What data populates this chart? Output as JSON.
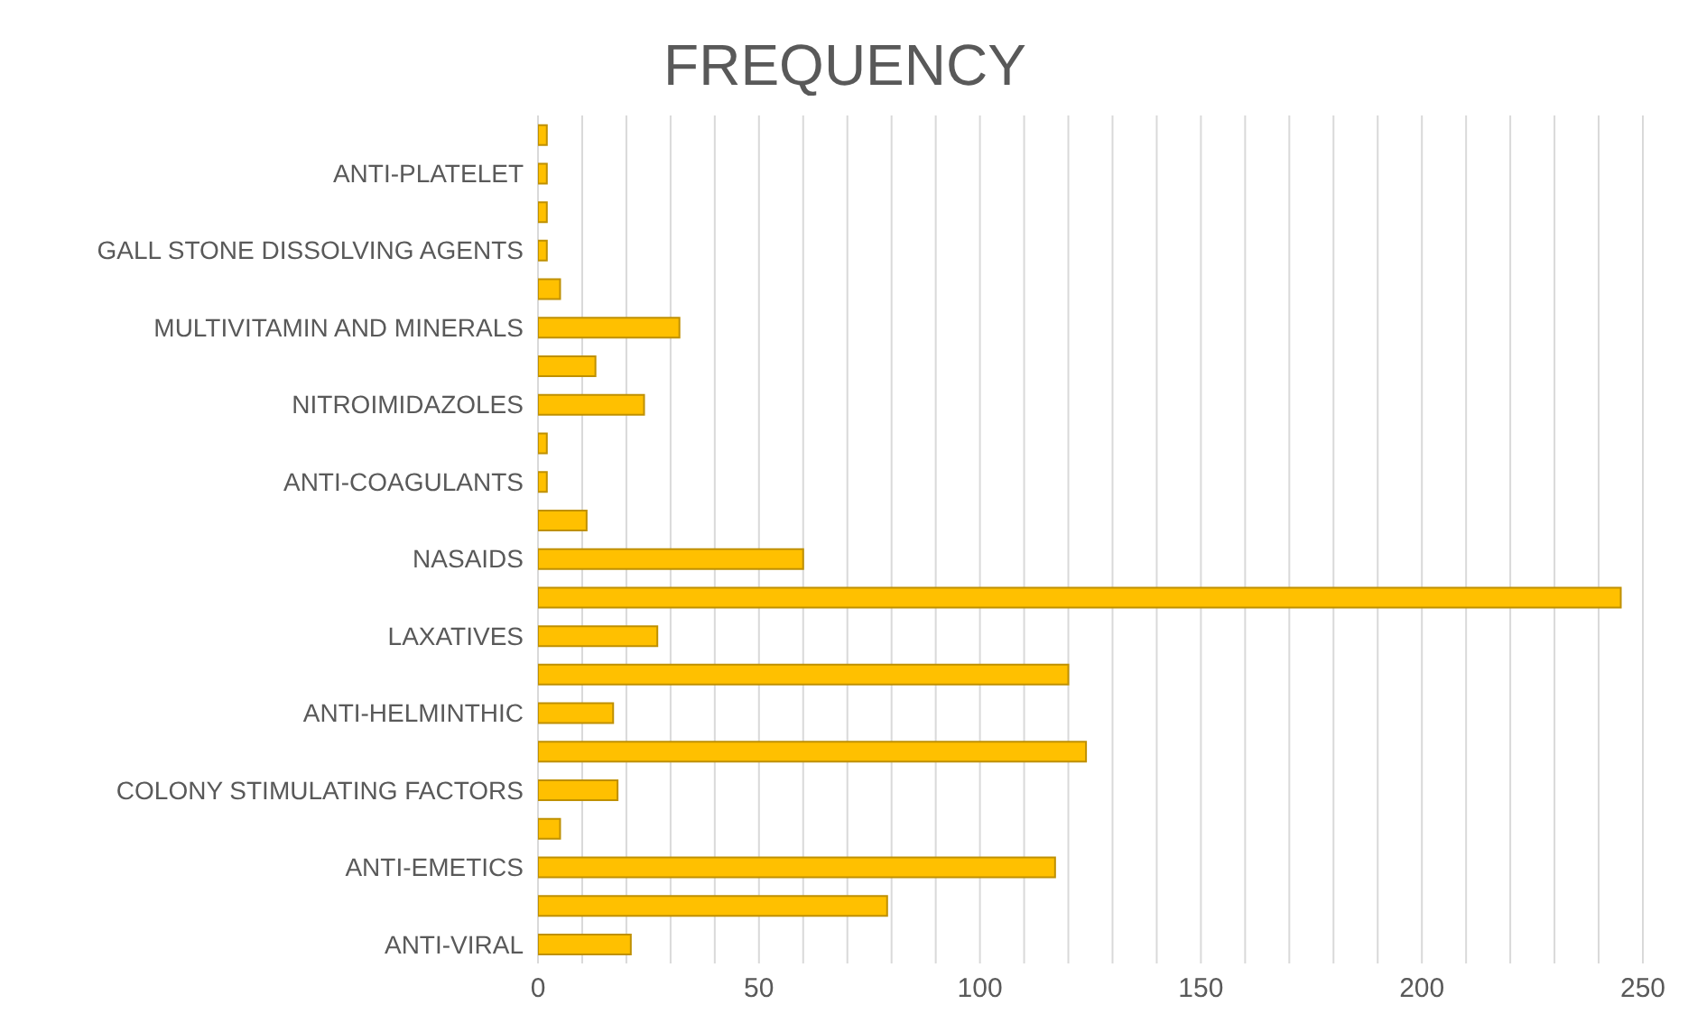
{
  "chart_data": {
    "type": "bar",
    "orientation": "horizontal",
    "title": "FREQUENCY",
    "categories": [
      null,
      "ANTI-PLATELET",
      null,
      "GALL STONE DISSOLVING AGENTS",
      null,
      "MULTIVITAMIN AND MINERALS",
      null,
      "NITROIMIDAZOLES",
      null,
      "ANTI-COAGULANTS",
      null,
      "NASAIDS",
      null,
      "LAXATIVES",
      null,
      "ANTI-HELMINTHIC",
      null,
      "COLONY STIMULATING FACTORS",
      null,
      "ANTI-EMETICS",
      null,
      "ANTI-VIRAL"
    ],
    "values": [
      2,
      2,
      2,
      2,
      5,
      32,
      13,
      24,
      2,
      2,
      11,
      60,
      245,
      27,
      120,
      17,
      124,
      18,
      5,
      117,
      79,
      21
    ],
    "color": "#ffc000",
    "xlim": [
      0,
      250
    ],
    "xticks": [
      0,
      {
        "value": 10,
        "label": null
      },
      {
        "value": 20,
        "label": null
      },
      {
        "value": 30,
        "label": null
      },
      {
        "value": 40,
        "label": null
      },
      50,
      {
        "value": 60,
        "label": null
      },
      {
        "value": 70,
        "label": null
      },
      {
        "value": 80,
        "label": null
      },
      {
        "value": 90,
        "label": null
      },
      100,
      {
        "value": 110,
        "label": null
      },
      {
        "value": 120,
        "label": null
      },
      {
        "value": 130,
        "label": null
      },
      {
        "value": 140,
        "label": null
      },
      150,
      {
        "value": 160,
        "label": null
      },
      {
        "value": 170,
        "label": null
      },
      {
        "value": 180,
        "label": null
      },
      {
        "value": 190,
        "label": null
      },
      200,
      {
        "value": 210,
        "label": null
      },
      {
        "value": 220,
        "label": null
      },
      {
        "value": 230,
        "label": null
      },
      {
        "value": 240,
        "label": null
      },
      250
    ],
    "grid": "x",
    "legend": false
  }
}
